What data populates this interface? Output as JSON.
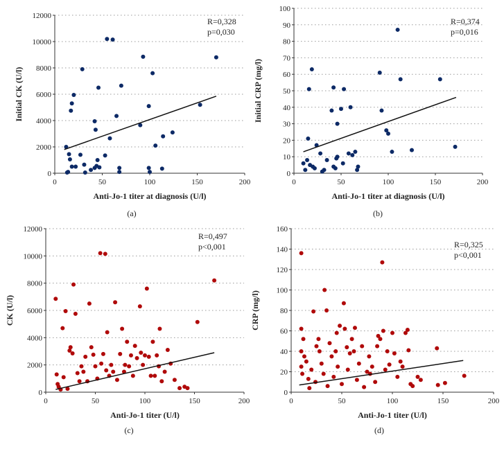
{
  "chart_data": [
    {
      "type": "scatter",
      "panel_label": "(a)",
      "xlabel": "Anti-Jo-1 titer at diagnosis (U/l)",
      "ylabel": "Initial CK (U/l)",
      "xlim": [
        0,
        200
      ],
      "ylim": [
        0,
        12000
      ],
      "xticks": [
        "0",
        "50",
        "100",
        "150",
        "200"
      ],
      "yticks": [
        "0",
        "2000",
        "4000",
        "6000",
        "8000",
        "10000",
        "12000"
      ],
      "stats": [
        "R=0,328",
        "p=0,030"
      ],
      "point_color": "#0d2a66",
      "trendline": [
        [
          10,
          1800
        ],
        [
          170,
          5850
        ]
      ],
      "points": [
        [
          12,
          2000
        ],
        [
          13,
          50
        ],
        [
          14,
          100
        ],
        [
          15,
          1450
        ],
        [
          16,
          1050
        ],
        [
          17,
          4750
        ],
        [
          18,
          5300
        ],
        [
          18,
          500
        ],
        [
          20,
          5950
        ],
        [
          22,
          500
        ],
        [
          27,
          1400
        ],
        [
          29,
          7900
        ],
        [
          31,
          650
        ],
        [
          32,
          50
        ],
        [
          38,
          250
        ],
        [
          42,
          3950
        ],
        [
          42,
          400
        ],
        [
          43,
          3300
        ],
        [
          44,
          550
        ],
        [
          45,
          1000
        ],
        [
          46,
          6500
        ],
        [
          47,
          450
        ],
        [
          53,
          1350
        ],
        [
          55,
          10200
        ],
        [
          58,
          2650
        ],
        [
          61,
          10150
        ],
        [
          65,
          4350
        ],
        [
          68,
          400
        ],
        [
          68,
          100
        ],
        [
          70,
          6650
        ],
        [
          90,
          3650
        ],
        [
          93,
          8850
        ],
        [
          99,
          5100
        ],
        [
          99,
          400
        ],
        [
          100,
          100
        ],
        [
          103,
          7600
        ],
        [
          106,
          2100
        ],
        [
          113,
          350
        ],
        [
          114,
          2800
        ],
        [
          124,
          3100
        ],
        [
          153,
          5200
        ],
        [
          170,
          8800
        ]
      ]
    },
    {
      "type": "scatter",
      "panel_label": "(b)",
      "xlabel": "Anti-Jo-1 titer at diagnosis (U/l)",
      "ylabel": "Initial CRP (mg/l)",
      "xlim": [
        0,
        200
      ],
      "ylim": [
        0,
        100
      ],
      "xticks": [
        "0",
        "50",
        "100",
        "150",
        "200"
      ],
      "yticks": [
        "0",
        "10",
        "20",
        "30",
        "40",
        "50",
        "60",
        "70",
        "80",
        "90",
        "100"
      ],
      "stats": [
        "R=0,374",
        "p=0,016"
      ],
      "point_color": "#0d2a66",
      "trendline": [
        [
          10,
          13
        ],
        [
          172,
          46
        ]
      ],
      "points": [
        [
          10,
          6
        ],
        [
          12,
          2
        ],
        [
          14,
          8
        ],
        [
          15,
          21
        ],
        [
          16,
          51
        ],
        [
          17,
          5
        ],
        [
          19,
          63
        ],
        [
          20,
          4
        ],
        [
          22,
          3
        ],
        [
          24,
          17
        ],
        [
          28,
          12
        ],
        [
          30,
          1
        ],
        [
          32,
          2
        ],
        [
          35,
          8
        ],
        [
          40,
          38
        ],
        [
          42,
          52
        ],
        [
          42,
          4
        ],
        [
          44,
          3
        ],
        [
          45,
          9
        ],
        [
          46,
          30
        ],
        [
          46,
          10
        ],
        [
          50,
          39
        ],
        [
          52,
          6
        ],
        [
          53,
          51
        ],
        [
          58,
          12
        ],
        [
          60,
          40
        ],
        [
          62,
          11
        ],
        [
          65,
          13
        ],
        [
          67,
          2
        ],
        [
          68,
          4
        ],
        [
          91,
          61
        ],
        [
          93,
          38
        ],
        [
          98,
          26
        ],
        [
          100,
          24
        ],
        [
          104,
          13
        ],
        [
          110,
          87
        ],
        [
          113,
          57
        ],
        [
          125,
          14
        ],
        [
          155,
          57
        ],
        [
          171,
          16
        ]
      ]
    },
    {
      "type": "scatter",
      "panel_label": "(c)",
      "xlabel": "Anti-Jo-1 titer (U/l)",
      "ylabel": "CK (U/l)",
      "xlim": [
        0,
        200
      ],
      "ylim": [
        0,
        12000
      ],
      "xticks": [
        "0",
        "50",
        "100",
        "150",
        "200"
      ],
      "yticks": [
        "0",
        "2000",
        "4000",
        "6000",
        "8000",
        "10000",
        "12000"
      ],
      "stats": [
        "R=0,497",
        "p<0,001"
      ],
      "point_color": "#b00a0a",
      "trendline": [
        [
          10,
          200
        ],
        [
          170,
          2900
        ]
      ],
      "points": [
        [
          10,
          6850
        ],
        [
          11,
          1300
        ],
        [
          12,
          600
        ],
        [
          13,
          400
        ],
        [
          15,
          200
        ],
        [
          17,
          4700
        ],
        [
          18,
          1100
        ],
        [
          20,
          5950
        ],
        [
          22,
          250
        ],
        [
          24,
          3050
        ],
        [
          25,
          3300
        ],
        [
          27,
          2850
        ],
        [
          28,
          7900
        ],
        [
          30,
          5750
        ],
        [
          32,
          1400
        ],
        [
          34,
          800
        ],
        [
          36,
          1900
        ],
        [
          38,
          1500
        ],
        [
          40,
          2600
        ],
        [
          42,
          800
        ],
        [
          44,
          6500
        ],
        [
          46,
          3300
        ],
        [
          48,
          2750
        ],
        [
          50,
          1900
        ],
        [
          52,
          1000
        ],
        [
          55,
          10200
        ],
        [
          56,
          2100
        ],
        [
          58,
          2800
        ],
        [
          60,
          10150
        ],
        [
          61,
          1600
        ],
        [
          62,
          4400
        ],
        [
          64,
          1200
        ],
        [
          66,
          2000
        ],
        [
          68,
          1500
        ],
        [
          70,
          6600
        ],
        [
          72,
          900
        ],
        [
          75,
          2800
        ],
        [
          77,
          4650
        ],
        [
          79,
          1500
        ],
        [
          80,
          2000
        ],
        [
          82,
          3700
        ],
        [
          84,
          1900
        ],
        [
          86,
          2700
        ],
        [
          88,
          1200
        ],
        [
          90,
          3400
        ],
        [
          92,
          2500
        ],
        [
          95,
          6300
        ],
        [
          96,
          2900
        ],
        [
          98,
          2000
        ],
        [
          100,
          2700
        ],
        [
          102,
          7600
        ],
        [
          104,
          2600
        ],
        [
          106,
          1200
        ],
        [
          108,
          3700
        ],
        [
          110,
          1200
        ],
        [
          112,
          2700
        ],
        [
          114,
          1900
        ],
        [
          115,
          4650
        ],
        [
          117,
          800
        ],
        [
          120,
          1500
        ],
        [
          123,
          3100
        ],
        [
          126,
          2100
        ],
        [
          130,
          900
        ],
        [
          135,
          300
        ],
        [
          140,
          400
        ],
        [
          143,
          300
        ],
        [
          153,
          5150
        ],
        [
          170,
          8200
        ]
      ]
    },
    {
      "type": "scatter",
      "panel_label": "(d)",
      "xlabel": "Anti-Jo-1 titer (U/l)",
      "ylabel": "CRP (mg/l)",
      "xlim": [
        0,
        200
      ],
      "ylim": [
        0,
        160
      ],
      "xticks": [
        "0",
        "50",
        "100",
        "150",
        "200"
      ],
      "yticks": [
        "0",
        "20",
        "40",
        "60",
        "80",
        "100",
        "120",
        "140",
        "160"
      ],
      "stats": [
        "R=0,325",
        "p<0,001"
      ],
      "point_color": "#b00a0a",
      "trendline": [
        [
          8,
          7
        ],
        [
          170,
          31
        ]
      ],
      "points": [
        [
          10,
          136
        ],
        [
          10,
          62
        ],
        [
          10,
          40
        ],
        [
          10,
          25
        ],
        [
          11,
          18
        ],
        [
          12,
          52
        ],
        [
          13,
          35
        ],
        [
          15,
          30
        ],
        [
          17,
          13
        ],
        [
          18,
          4
        ],
        [
          20,
          22
        ],
        [
          22,
          79
        ],
        [
          24,
          10
        ],
        [
          25,
          45
        ],
        [
          27,
          52
        ],
        [
          28,
          40
        ],
        [
          30,
          28
        ],
        [
          32,
          18
        ],
        [
          33,
          100
        ],
        [
          35,
          80
        ],
        [
          36,
          6
        ],
        [
          38,
          48
        ],
        [
          40,
          35
        ],
        [
          42,
          15
        ],
        [
          44,
          40
        ],
        [
          45,
          58
        ],
        [
          46,
          25
        ],
        [
          48,
          65
        ],
        [
          50,
          8
        ],
        [
          52,
          87
        ],
        [
          53,
          62
        ],
        [
          55,
          44
        ],
        [
          56,
          22
        ],
        [
          58,
          38
        ],
        [
          60,
          52
        ],
        [
          62,
          40
        ],
        [
          63,
          63
        ],
        [
          65,
          12
        ],
        [
          67,
          28
        ],
        [
          70,
          45
        ],
        [
          72,
          5
        ],
        [
          75,
          20
        ],
        [
          77,
          35
        ],
        [
          78,
          18
        ],
        [
          80,
          25
        ],
        [
          83,
          10
        ],
        [
          85,
          45
        ],
        [
          86,
          55
        ],
        [
          88,
          52
        ],
        [
          90,
          127
        ],
        [
          91,
          60
        ],
        [
          93,
          22
        ],
        [
          95,
          40
        ],
        [
          97,
          27
        ],
        [
          100,
          58
        ],
        [
          102,
          38
        ],
        [
          105,
          15
        ],
        [
          108,
          30
        ],
        [
          110,
          25
        ],
        [
          113,
          58
        ],
        [
          115,
          61
        ],
        [
          116,
          41
        ],
        [
          118,
          8
        ],
        [
          120,
          6
        ],
        [
          125,
          15
        ],
        [
          128,
          12
        ],
        [
          144,
          43
        ],
        [
          145,
          7
        ],
        [
          152,
          9
        ],
        [
          171,
          16
        ]
      ]
    }
  ]
}
